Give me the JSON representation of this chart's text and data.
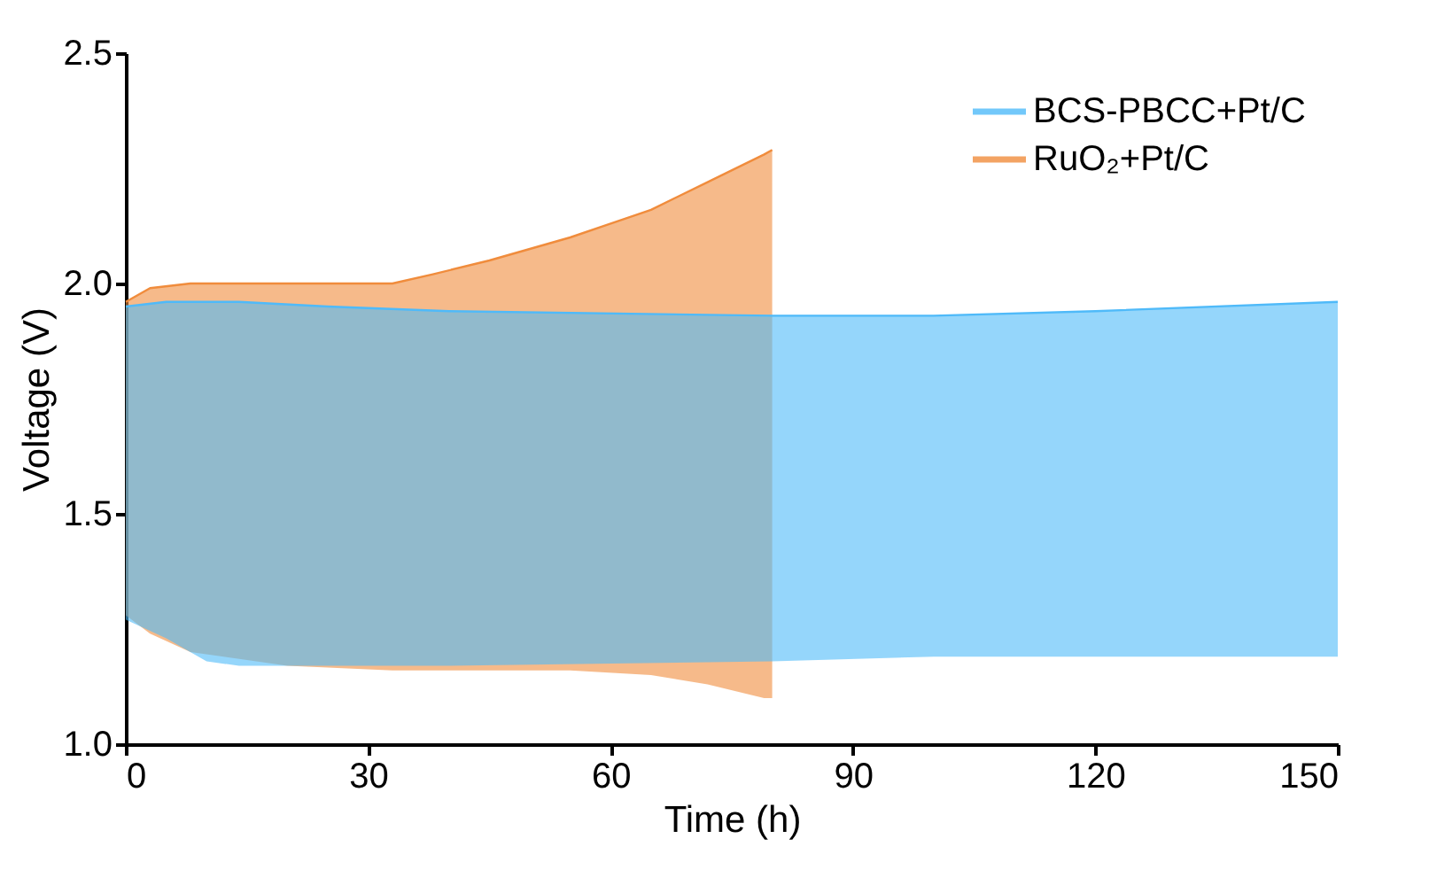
{
  "chart_data": {
    "type": "line",
    "xlabel": "Time (h)",
    "ylabel": "Voltage (V)",
    "xlim": [
      0,
      150
    ],
    "xticks": [
      0,
      30,
      60,
      90,
      120,
      150
    ],
    "ylim": [
      1.0,
      2.5
    ],
    "yticks": [
      {
        "value": 1.0,
        "label": "1.0"
      },
      1.5,
      {
        "value": 2.0,
        "label": "2.0"
      },
      2.5
    ],
    "legend": "top right",
    "series": [
      {
        "name": "BCS-PBCC+Pt/C",
        "color": "#4fbaf9",
        "x": [
          0,
          5,
          10,
          14,
          25,
          40,
          80,
          100,
          120,
          150
        ],
        "values": [
          1.95,
          1.96,
          1.96,
          1.96,
          1.95,
          1.94,
          1.93,
          1.93,
          1.94,
          1.96
        ],
        "upper": [
          1.95,
          1.96,
          1.96,
          1.96,
          1.95,
          1.94,
          1.93,
          1.93,
          1.94,
          1.96
        ],
        "lower": [
          1.27,
          1.23,
          1.18,
          1.17,
          1.17,
          1.17,
          1.18,
          1.19,
          1.19,
          1.19
        ]
      },
      {
        "name": "RuO₂+Pt/C",
        "color": "#f08c3c",
        "x": [
          0,
          3,
          8,
          20,
          33,
          38,
          45,
          55,
          65,
          72,
          79,
          80
        ],
        "values": [
          1.96,
          1.99,
          2.0,
          2.0,
          2.0,
          2.02,
          2.05,
          2.1,
          2.16,
          2.22,
          2.28,
          2.29
        ],
        "upper": [
          1.96,
          1.99,
          2.0,
          2.0,
          2.0,
          2.02,
          2.05,
          2.1,
          2.16,
          2.22,
          2.28,
          2.29
        ],
        "lower": [
          1.28,
          1.24,
          1.2,
          1.17,
          1.16,
          1.16,
          1.16,
          1.16,
          1.15,
          1.13,
          1.1,
          1.1
        ]
      }
    ]
  }
}
